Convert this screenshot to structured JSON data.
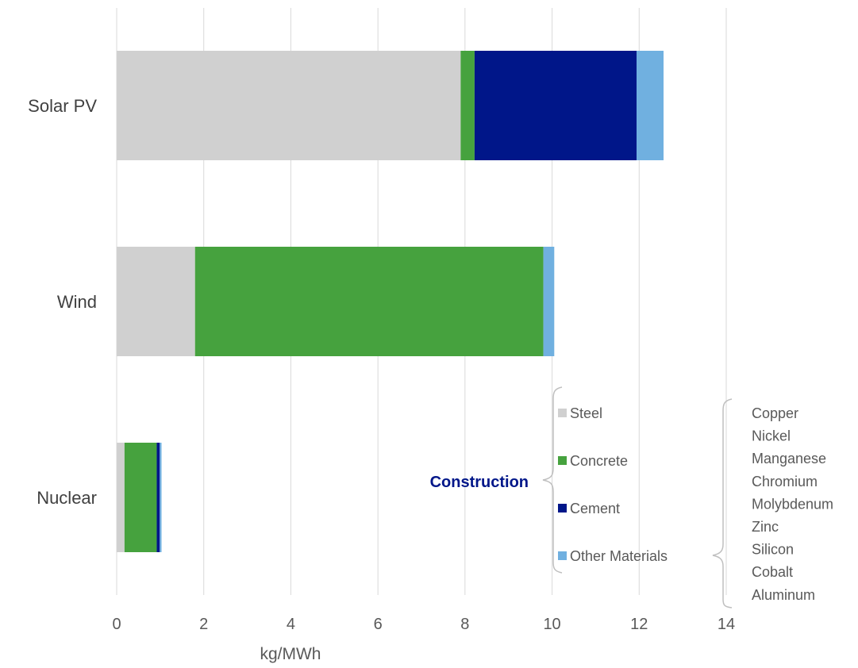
{
  "chart_data": {
    "type": "bar",
    "orientation": "horizontal",
    "stacked": true,
    "categories": [
      "Solar PV",
      "Wind",
      "Nuclear"
    ],
    "series": [
      {
        "name": "Steel",
        "values": [
          7.9,
          1.8,
          0.18
        ],
        "color": "#d0d0d0"
      },
      {
        "name": "Concrete",
        "values": [
          0.32,
          8.0,
          0.74
        ],
        "color": "#46a23e"
      },
      {
        "name": "Cement",
        "values": [
          3.72,
          0.0,
          0.07
        ],
        "color": "#001689"
      },
      {
        "name": "Other Materials",
        "values": [
          0.62,
          0.25,
          0.04
        ],
        "color": "#70b0e0"
      }
    ],
    "title": "",
    "xlabel": "kg/MWh",
    "ylabel": "",
    "xlim": [
      0,
      14
    ],
    "xticks": [
      0,
      2,
      4,
      6,
      8,
      10,
      12,
      14
    ],
    "grid": "vertical",
    "legend_placement": "bottom-right",
    "legend_group_label": "Construction",
    "legend_group_color": "#001689",
    "other_materials_list": [
      "Copper",
      "Nickel",
      "Manganese",
      "Chromium",
      "Molybdenum",
      "Zinc",
      "Silicon",
      "Cobalt",
      "Aluminum"
    ]
  }
}
